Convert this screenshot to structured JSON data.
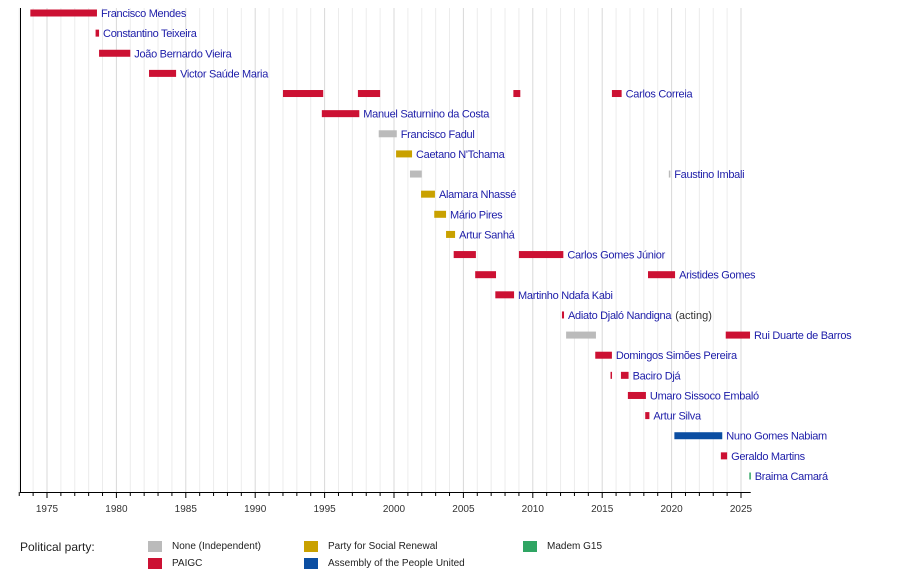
{
  "chart_data": {
    "type": "timeline",
    "xlim": [
      1973,
      2025.7
    ],
    "xticks": [
      1975,
      1980,
      1985,
      1990,
      1995,
      2000,
      2005,
      2010,
      2015,
      2020,
      2025
    ],
    "grid": true,
    "legend_title": "Political party:",
    "parties": [
      {
        "key": "none",
        "name": "None (Independent)",
        "color": "#bbbbbb"
      },
      {
        "key": "paigc",
        "name": "PAIGC",
        "color": "#cc1133"
      },
      {
        "key": "prs",
        "name": "Party for Social Renewal",
        "color": "#c9a100"
      },
      {
        "key": "apu",
        "name": "Assembly of the People United",
        "color": "#0b4ea2"
      },
      {
        "key": "madem",
        "name": "Madem G15",
        "color": "#2fa563"
      }
    ],
    "rows": [
      {
        "label": "Francisco Mendes",
        "spans": [
          [
            1973.8,
            1978.6,
            "paigc"
          ]
        ]
      },
      {
        "label": "Constantino Teixeira",
        "spans": [
          [
            1978.5,
            1978.75,
            "paigc"
          ]
        ]
      },
      {
        "label": "João Bernardo Vieira",
        "spans": [
          [
            1978.75,
            1981.0,
            "paigc"
          ]
        ]
      },
      {
        "label": "Victor Saúde Maria",
        "spans": [
          [
            1982.35,
            1984.3,
            "paigc"
          ]
        ]
      },
      {
        "label": "Carlos Correia",
        "spans": [
          [
            1992.0,
            1994.9,
            "paigc"
          ],
          [
            1997.4,
            1999.0,
            "paigc"
          ],
          [
            2008.6,
            2009.1,
            "paigc"
          ],
          [
            2015.7,
            2016.4,
            "paigc"
          ]
        ]
      },
      {
        "label": "Manuel Saturnino da Costa",
        "spans": [
          [
            1994.8,
            1997.5,
            "paigc"
          ]
        ]
      },
      {
        "label": "Francisco Fadul",
        "spans": [
          [
            1998.9,
            2000.2,
            "none"
          ]
        ]
      },
      {
        "label": "Caetano N'Tchama",
        "spans": [
          [
            2000.15,
            2001.3,
            "prs"
          ]
        ]
      },
      {
        "label": "Faustino Imbali",
        "spans": [
          [
            2001.15,
            2002.0,
            "none"
          ],
          [
            2019.8,
            2019.9,
            "none"
          ]
        ]
      },
      {
        "label": "Alamara Nhassé",
        "spans": [
          [
            2001.95,
            2002.95,
            "prs"
          ]
        ]
      },
      {
        "label": "Mário Pires",
        "spans": [
          [
            2002.9,
            2003.75,
            "prs"
          ]
        ]
      },
      {
        "label": "Artur Sanhá",
        "spans": [
          [
            2003.75,
            2004.4,
            "prs"
          ]
        ]
      },
      {
        "label": "Carlos Gomes Júnior",
        "spans": [
          [
            2004.3,
            2005.9,
            "paigc"
          ],
          [
            2009.0,
            2012.2,
            "paigc"
          ]
        ]
      },
      {
        "label": "Aristides Gomes",
        "spans": [
          [
            2005.85,
            2007.35,
            "paigc"
          ],
          [
            2018.3,
            2020.25,
            "paigc"
          ]
        ]
      },
      {
        "label": "Martinho Ndafa Kabi",
        "spans": [
          [
            2007.3,
            2008.65,
            "paigc"
          ]
        ]
      },
      {
        "label": "Adiato Djaló Nandigna",
        "note": "(acting)",
        "spans": [
          [
            2012.1,
            2012.25,
            "paigc"
          ]
        ]
      },
      {
        "label": "Rui Duarte de Barros",
        "spans": [
          [
            2012.4,
            2014.55,
            "none"
          ],
          [
            2023.9,
            2025.65,
            "paigc"
          ]
        ]
      },
      {
        "label": "Domingos Simões Pereira",
        "spans": [
          [
            2014.5,
            2015.7,
            "paigc"
          ]
        ]
      },
      {
        "label": "Baciro Djá",
        "spans": [
          [
            2015.6,
            2015.7,
            "paigc"
          ],
          [
            2016.35,
            2016.9,
            "paigc"
          ]
        ]
      },
      {
        "label": "Umaro Sissoco Embaló",
        "spans": [
          [
            2016.85,
            2018.15,
            "paigc"
          ]
        ]
      },
      {
        "label": "Artur Silva",
        "spans": [
          [
            2018.1,
            2018.4,
            "paigc"
          ]
        ]
      },
      {
        "label": "Nuno Gomes Nabiam",
        "spans": [
          [
            2020.2,
            2023.65,
            "apu"
          ]
        ]
      },
      {
        "label": "Geraldo Martins",
        "spans": [
          [
            2023.55,
            2024.0,
            "paigc"
          ]
        ]
      },
      {
        "label": "Braima Camará",
        "spans": [
          [
            2025.6,
            2025.7,
            "madem"
          ]
        ]
      }
    ]
  }
}
